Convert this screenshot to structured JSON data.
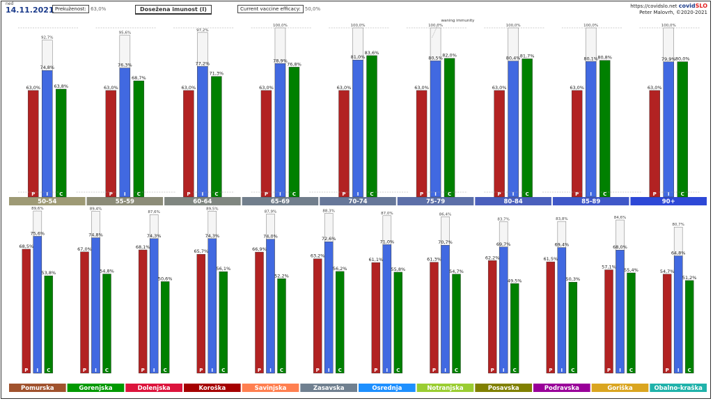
{
  "header": {
    "day": "ned",
    "date": "14.11.2021",
    "breakthrough_label": "Prekuženost:",
    "breakthrough_value": "63,0%",
    "title": "Dosežena imunost (I)",
    "efficacy_label": "Current vaccine efficacy:",
    "efficacy_value": "50,0%",
    "url": "https://covidslo.net",
    "brand_a": "covid",
    "brand_b": "SLO",
    "author": "Peter Malovrh, ©2020-2021"
  },
  "colors": {
    "P": "#b22222",
    "I": "#4169e1",
    "C": "#008000",
    "band": "#f5f5f5"
  },
  "chart_data": [
    {
      "type": "bar",
      "title": "Age groups",
      "bar_letters": [
        "P",
        "I",
        "C"
      ],
      "ylim": [
        0,
        100
      ],
      "annotation": "waning immunity",
      "categories": [
        "50-54",
        "55-59",
        "60-64",
        "65-69",
        "70-74",
        "75-79",
        "80-84",
        "85-89",
        "90+"
      ],
      "label_colors": [
        "#9e9a75",
        "#8c8c78",
        "#7f8680",
        "#717e8c",
        "#667799",
        "#5c6fa8",
        "#4a5fbc",
        "#3f57c8",
        "#2d48d6"
      ],
      "P": [
        63.0,
        63.0,
        63.0,
        63.0,
        63.0,
        63.0,
        63.0,
        63.0,
        63.0
      ],
      "I": [
        74.8,
        76.3,
        77.2,
        78.9,
        81.0,
        80.5,
        80.4,
        80.1,
        79.9
      ],
      "C": [
        63.8,
        68.7,
        71.3,
        76.8,
        83.6,
        82.0,
        81.7,
        80.8,
        80.0
      ],
      "max": [
        92.7,
        95.6,
        97.2,
        100.0,
        100.0,
        100.0,
        100.0,
        100.0,
        100.0
      ],
      "value_labels": {
        "P": [
          "63,0%",
          "63,0%",
          "63,0%",
          "63,0%",
          "63,0%",
          "63,0%",
          "63,0%",
          "63,0%",
          "63,0%"
        ],
        "I": [
          "74,8%",
          "76,3%",
          "77,2%",
          "78,9%",
          "81,0%",
          "80,5%",
          "80,4%",
          "80,1%",
          "79,9%"
        ],
        "C": [
          "63,8%",
          "68,7%",
          "71,3%",
          "76,8%",
          "83,6%",
          "82,0%",
          "81,7%",
          "80,8%",
          "80,0%"
        ],
        "max": [
          "92,7%",
          "95,6%",
          "97,2%",
          "100,0%",
          "100,0%",
          "100,0%",
          "100,0%",
          "100,0%",
          "100,0%"
        ]
      }
    },
    {
      "type": "bar",
      "title": "Regions",
      "bar_letters": [
        "P",
        "I",
        "C"
      ],
      "ylim": [
        0,
        100
      ],
      "categories": [
        "Pomurska",
        "Gorenjska",
        "Dolenjska",
        "Koroška",
        "Savinjska",
        "Zasavska",
        "Osrednja",
        "Notranjska",
        "Posavska",
        "Podravska",
        "Goriška",
        "Obalno-kraška"
      ],
      "label_colors": [
        "#a0522d",
        "#009900",
        "#dc143c",
        "#a50000",
        "#ff7f50",
        "#708090",
        "#1e90ff",
        "#9acd32",
        "#808000",
        "#990099",
        "#daa520",
        "#20b2aa"
      ],
      "P": [
        68.5,
        67.0,
        68.1,
        65.7,
        66.9,
        63.2,
        61.1,
        61.3,
        62.2,
        61.5,
        57.1,
        54.7
      ],
      "I": [
        75.6,
        74.8,
        74.3,
        74.3,
        74.0,
        72.6,
        71.0,
        70.7,
        69.7,
        69.4,
        68.0,
        64.8
      ],
      "C": [
        53.8,
        54.8,
        50.6,
        56.1,
        52.2,
        56.2,
        55.8,
        54.7,
        49.5,
        50.3,
        55.4,
        51.2
      ],
      "max": [
        89.6,
        89.4,
        87.6,
        89.5,
        87.9,
        88.3,
        87.0,
        86.4,
        83.7,
        83.8,
        84.6,
        80.7
      ],
      "value_labels": {
        "P": [
          "68,5%",
          "67,0%",
          "68,1%",
          "65,7%",
          "66,9%",
          "63,2%",
          "61,1%",
          "61,3%",
          "62,2%",
          "61,5%",
          "57,1%",
          "54,7%"
        ],
        "I": [
          "75,6%",
          "74,8%",
          "74,3%",
          "74,3%",
          "74,0%",
          "72,6%",
          "71,0%",
          "70,7%",
          "69,7%",
          "69,4%",
          "68,0%",
          "64,8%"
        ],
        "C": [
          "53,8%",
          "54,8%",
          "50,6%",
          "56,1%",
          "52,2%",
          "56,2%",
          "55,8%",
          "54,7%",
          "49,5%",
          "50,3%",
          "55,4%",
          "51,2%"
        ],
        "max": [
          "89,6%",
          "89,4%",
          "87,6%",
          "89,5%",
          "87,9%",
          "88,3%",
          "87,0%",
          "86,4%",
          "83,7%",
          "83,8%",
          "84,6%",
          "80,7%"
        ]
      }
    }
  ]
}
